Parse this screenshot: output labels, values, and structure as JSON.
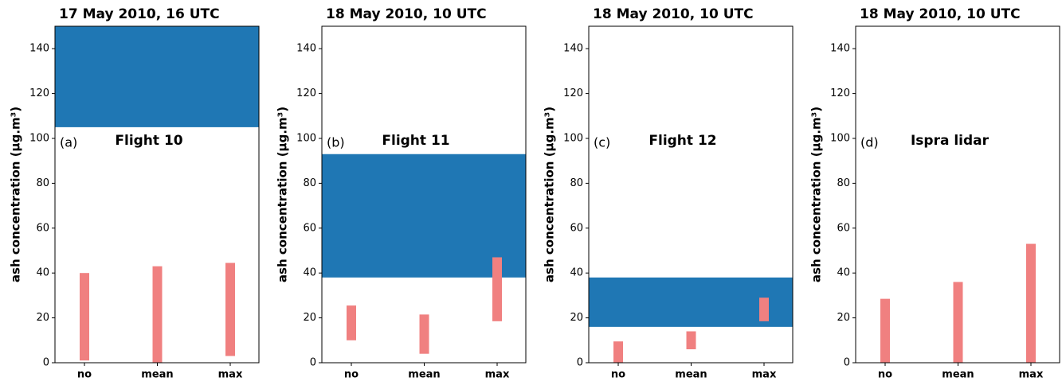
{
  "chart_data": [
    {
      "type": "floating-bar",
      "title": "17 May 2010, 16 UTC",
      "ylabel": "ash concentration (μg.m³)",
      "panel_label": "(a)",
      "annotation": "Flight 10",
      "categories": [
        "no",
        "mean",
        "max"
      ],
      "low": [
        1,
        0,
        3
      ],
      "high": [
        40,
        43,
        44.5
      ],
      "color": "#f08080",
      "band": [
        105,
        150
      ],
      "band_color": "#1f77b4",
      "ylim": [
        0,
        150
      ],
      "yticks": [
        0,
        20,
        40,
        60,
        80,
        100,
        120,
        140
      ]
    },
    {
      "type": "floating-bar",
      "title": "18 May 2010, 10 UTC",
      "ylabel": "ash concentration (μg.m³)",
      "panel_label": "(b)",
      "annotation": "Flight 11",
      "categories": [
        "no",
        "mean",
        "max"
      ],
      "low": [
        10,
        4,
        18.5
      ],
      "high": [
        25.5,
        21.5,
        47
      ],
      "color": "#f08080",
      "band": [
        38,
        93
      ],
      "band_color": "#1f77b4",
      "ylim": [
        0,
        150
      ],
      "yticks": [
        0,
        20,
        40,
        60,
        80,
        100,
        120,
        140
      ]
    },
    {
      "type": "floating-bar",
      "title": "18 May 2010, 10 UTC",
      "ylabel": "ash concentration (μg.m³)",
      "panel_label": "(c)",
      "annotation": "Flight 12",
      "categories": [
        "no",
        "mean",
        "max"
      ],
      "low": [
        0,
        6,
        18.5
      ],
      "high": [
        9.5,
        14,
        29
      ],
      "color": "#f08080",
      "band": [
        16,
        38
      ],
      "band_color": "#1f77b4",
      "ylim": [
        0,
        150
      ],
      "yticks": [
        0,
        20,
        40,
        60,
        80,
        100,
        120,
        140
      ]
    },
    {
      "type": "floating-bar",
      "title": "18 May 2010, 10 UTC",
      "ylabel": "ash concentration (μg.m³)",
      "panel_label": "(d)",
      "annotation": "Ispra lidar",
      "categories": [
        "no",
        "mean",
        "max"
      ],
      "low": [
        0,
        0,
        0
      ],
      "high": [
        28.5,
        36,
        53
      ],
      "color": "#f08080",
      "ylim": [
        0,
        150
      ],
      "yticks": [
        0,
        20,
        40,
        60,
        80,
        100,
        120,
        140
      ]
    }
  ]
}
